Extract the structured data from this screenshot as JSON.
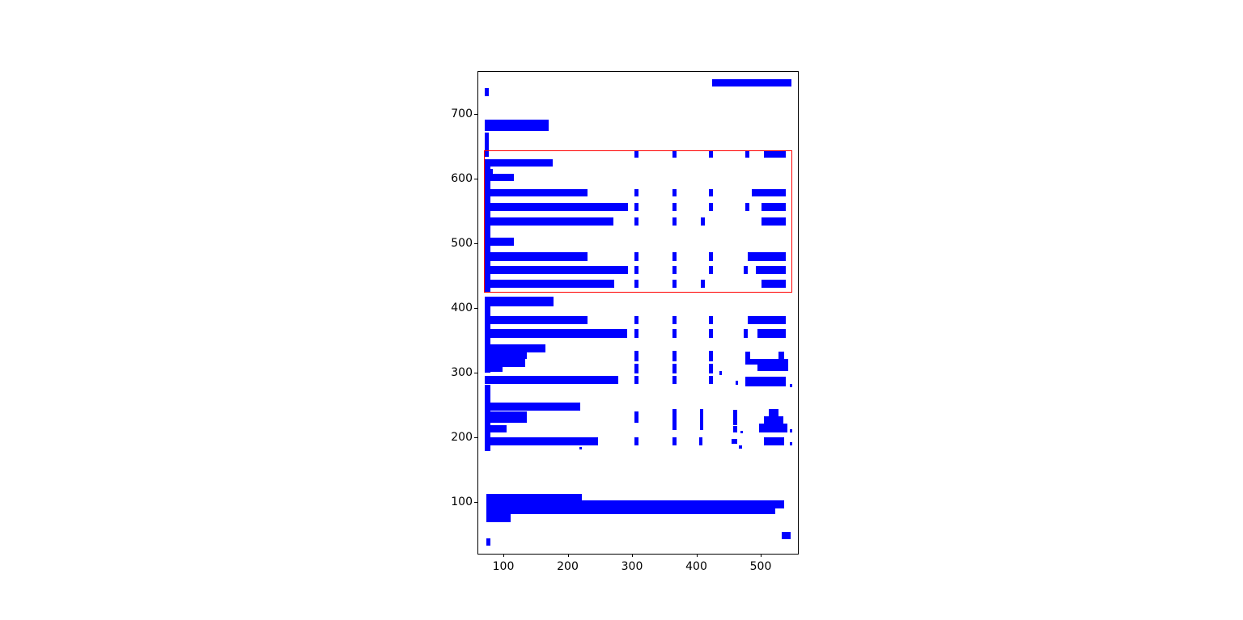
{
  "colors": {
    "background": "#ffffff",
    "bar": "#0000ff",
    "highlight_box": "#ff0000",
    "axis": "#000000"
  },
  "chart_data": {
    "type": "rects",
    "note": "layout of blue bounding-box rectangles with one red highlight rectangle",
    "xlim": [
      61,
      558
    ],
    "ylim": [
      20,
      765
    ],
    "x_ticks": [
      100,
      200,
      300,
      400,
      500
    ],
    "y_ticks": [
      100,
      200,
      300,
      400,
      500,
      600,
      700
    ],
    "x_tick_labels": [
      "100",
      "200",
      "300",
      "400",
      "500"
    ],
    "y_tick_labels": [
      "100",
      "200",
      "300",
      "400",
      "500",
      "600",
      "700"
    ],
    "grid": false,
    "legend": false,
    "title": "",
    "red_box": [
      70,
      424,
      479.5,
      219.5
    ],
    "rects": [
      [
        424,
        742,
        124,
        12
      ],
      [
        71,
        727,
        7,
        13
      ],
      [
        71,
        674,
        99,
        17
      ],
      [
        71,
        634,
        7,
        37
      ],
      [
        71,
        424,
        9,
        206
      ],
      [
        304,
        633,
        6,
        10
      ],
      [
        363,
        633,
        6,
        10
      ],
      [
        419,
        633,
        7,
        10
      ],
      [
        476,
        633,
        6,
        10
      ],
      [
        505,
        633,
        34,
        10
      ],
      [
        71,
        619,
        106,
        11
      ],
      [
        71,
        600,
        13,
        15
      ],
      [
        71,
        596,
        45,
        11
      ],
      [
        71,
        572,
        160,
        12
      ],
      [
        304,
        572,
        6,
        12
      ],
      [
        363,
        572,
        6,
        12
      ],
      [
        419,
        572,
        7,
        12
      ],
      [
        486,
        572,
        53,
        12
      ],
      [
        71,
        550,
        223,
        13
      ],
      [
        304,
        550,
        6,
        13
      ],
      [
        363,
        550,
        6,
        13
      ],
      [
        419,
        550,
        7,
        13
      ],
      [
        476,
        550,
        6,
        13
      ],
      [
        501,
        550,
        38,
        13
      ],
      [
        71,
        527,
        200,
        13
      ],
      [
        304,
        527,
        6,
        13
      ],
      [
        363,
        527,
        6,
        13
      ],
      [
        407,
        527,
        6,
        13
      ],
      [
        501,
        527,
        38,
        13
      ],
      [
        71,
        496,
        45,
        13
      ],
      [
        71,
        473,
        160,
        13
      ],
      [
        304,
        473,
        6,
        13
      ],
      [
        363,
        473,
        6,
        13
      ],
      [
        419,
        473,
        7,
        13
      ],
      [
        480,
        473,
        59,
        13
      ],
      [
        71,
        452,
        223,
        13
      ],
      [
        304,
        452,
        6,
        13
      ],
      [
        363,
        452,
        6,
        13
      ],
      [
        419,
        452,
        7,
        13
      ],
      [
        474,
        452,
        6,
        13
      ],
      [
        493,
        452,
        46,
        13
      ],
      [
        71,
        431,
        202,
        13
      ],
      [
        304,
        431,
        6,
        13
      ],
      [
        363,
        431,
        6,
        13
      ],
      [
        407,
        431,
        6,
        13
      ],
      [
        501,
        431,
        38,
        13
      ],
      [
        71,
        402,
        107,
        15
      ],
      [
        71,
        300,
        9,
        117
      ],
      [
        71,
        375,
        160,
        13
      ],
      [
        304,
        375,
        6,
        13
      ],
      [
        363,
        375,
        6,
        13
      ],
      [
        419,
        375,
        7,
        13
      ],
      [
        480,
        375,
        59,
        13
      ],
      [
        71,
        354,
        221,
        13
      ],
      [
        304,
        354,
        6,
        13
      ],
      [
        363,
        354,
        6,
        13
      ],
      [
        419,
        354,
        7,
        13
      ],
      [
        474,
        354,
        6,
        13
      ],
      [
        495,
        354,
        44,
        13
      ],
      [
        71,
        331,
        94,
        13
      ],
      [
        71,
        321,
        66,
        10
      ],
      [
        71,
        309,
        63,
        12
      ],
      [
        71,
        301,
        28,
        8
      ],
      [
        304,
        318,
        6,
        16
      ],
      [
        304,
        299,
        6,
        15
      ],
      [
        363,
        318,
        6,
        16
      ],
      [
        363,
        299,
        6,
        15
      ],
      [
        419,
        318,
        7,
        16
      ],
      [
        419,
        299,
        7,
        15
      ],
      [
        476,
        318,
        8,
        15
      ],
      [
        528,
        318,
        9,
        15
      ],
      [
        476,
        312,
        67,
        9
      ],
      [
        495,
        302,
        48,
        10
      ],
      [
        436,
        296,
        4,
        6
      ],
      [
        71,
        283,
        208,
        12
      ],
      [
        304,
        283,
        6,
        12
      ],
      [
        363,
        283,
        6,
        12
      ],
      [
        419,
        283,
        7,
        12
      ],
      [
        461,
        281,
        4,
        6
      ],
      [
        476,
        279,
        63,
        15
      ],
      [
        545,
        277,
        4,
        6
      ],
      [
        71,
        179,
        9,
        102
      ],
      [
        71,
        241,
        149,
        13
      ],
      [
        71,
        223,
        66,
        17
      ],
      [
        71,
        208,
        34,
        11
      ],
      [
        71,
        187,
        176,
        13
      ],
      [
        218,
        181,
        4,
        4
      ],
      [
        304,
        222,
        6,
        18
      ],
      [
        304,
        187,
        6,
        13
      ],
      [
        363,
        211,
        6,
        33
      ],
      [
        363,
        187,
        6,
        13
      ],
      [
        406,
        211,
        5,
        33
      ],
      [
        404,
        187,
        6,
        13
      ],
      [
        457,
        219,
        6,
        23
      ],
      [
        457,
        208,
        6,
        9
      ],
      [
        455,
        190,
        8,
        8
      ],
      [
        468,
        206,
        4,
        4
      ],
      [
        466,
        183,
        5,
        4
      ],
      [
        512,
        231,
        16,
        13
      ],
      [
        505,
        221,
        30,
        12
      ],
      [
        497,
        208,
        44,
        13
      ],
      [
        505,
        187,
        32,
        13
      ],
      [
        545,
        208,
        4,
        4
      ],
      [
        545,
        187,
        4,
        5
      ],
      [
        73,
        81,
        149,
        31
      ],
      [
        222,
        90,
        315,
        12
      ],
      [
        222,
        81,
        300,
        9
      ],
      [
        73,
        69,
        38,
        12
      ],
      [
        533,
        42,
        14,
        12
      ],
      [
        73,
        33,
        7,
        11
      ]
    ]
  }
}
